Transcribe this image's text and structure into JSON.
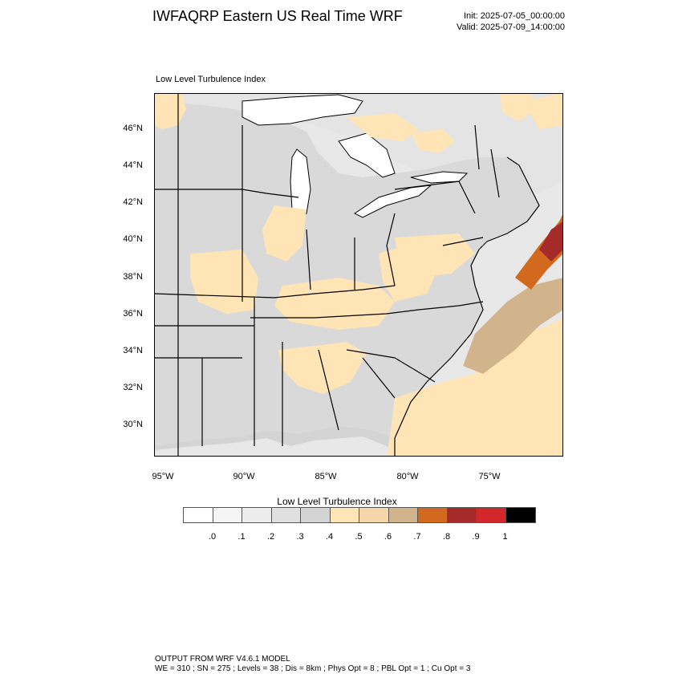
{
  "header": {
    "title": "IWFAQRP Eastern US Real Time WRF",
    "init": "Init: 2025-07-05_00:00:00",
    "valid": "Valid: 2025-07-09_14:00:00"
  },
  "map": {
    "subtitle": "Low Level Turbulence Index",
    "lat_labels": [
      "46°N",
      "44°N",
      "42°N",
      "40°N",
      "38°N",
      "36°N",
      "34°N",
      "32°N",
      "30°N"
    ],
    "lon_labels": [
      "95°W",
      "90°W",
      "85°W",
      "80°W",
      "75°W"
    ],
    "colors": {
      "land": "#d9d9d9",
      "water": "#ececec",
      "lake": "#ffffff",
      "border": "#000000"
    }
  },
  "colorbar": {
    "title": "Low Level Turbulence Index",
    "colors": [
      "#ffffff",
      "#f5f5f5",
      "#ececec",
      "#e0e0e0",
      "#d4d4d4",
      "#ffe4b5",
      "#f5d6a8",
      "#d2b48c",
      "#d2691e",
      "#a52a2a",
      "#d2262b",
      "#000000"
    ],
    "labels": [
      ".0",
      ".1",
      ".2",
      ".3",
      ".4",
      ".5",
      ".6",
      ".7",
      ".8",
      ".9",
      "1"
    ]
  },
  "footer": {
    "line1": "OUTPUT FROM WRF V4.6.1 MODEL",
    "line2": "WE = 310 ; SN = 275 ; Levels = 38 ; Dis = 8km ; Phys Opt = 8 ; PBL Opt = 1 ; Cu Opt = 3"
  }
}
